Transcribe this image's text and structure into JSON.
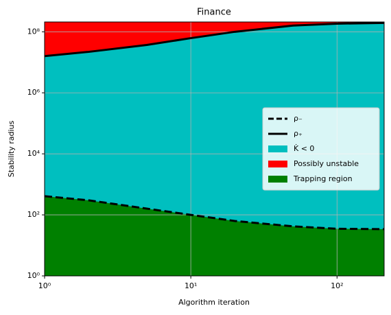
{
  "chart_data": {
    "type": "line",
    "title": "Finance",
    "x_label": "Algorithm iteration",
    "y_label": "Stability radius",
    "x": [
      1,
      2,
      5,
      10,
      20,
      50,
      100,
      210
    ],
    "series": [
      {
        "name": "ρ₋",
        "color": "#000000",
        "dash": true,
        "values": [
          410,
          300,
          160,
          100,
          63,
          42,
          35,
          34
        ]
      },
      {
        "name": "ρ₊",
        "color": "#000000",
        "dash": false,
        "values": [
          16000000,
          22000000,
          37000000,
          62000000,
          100000000,
          160000000,
          185000000,
          195000000
        ]
      }
    ],
    "regions": [
      {
        "name": "K̇ < 0",
        "color": "#00bfbf"
      },
      {
        "name": "Possibly unstable",
        "color": "#ff0000"
      },
      {
        "name": "Trapping region",
        "color": "#008000"
      }
    ],
    "xlog": true,
    "ylog": true,
    "xlim": [
      1,
      210
    ],
    "ylim": [
      1,
      210000000
    ],
    "xticks": [
      {
        "value": 1,
        "label": "10⁰"
      },
      {
        "value": 10,
        "label": "10¹"
      },
      {
        "value": 100,
        "label": "10²"
      }
    ],
    "yticks": [
      {
        "value": 1,
        "label": "10⁰"
      },
      {
        "value": 100,
        "label": "10²"
      },
      {
        "value": 10000,
        "label": "10⁴"
      },
      {
        "value": 1000000,
        "label": "10⁶"
      },
      {
        "value": 100000000,
        "label": "10⁸"
      }
    ],
    "grid": true,
    "legend": "center right"
  }
}
